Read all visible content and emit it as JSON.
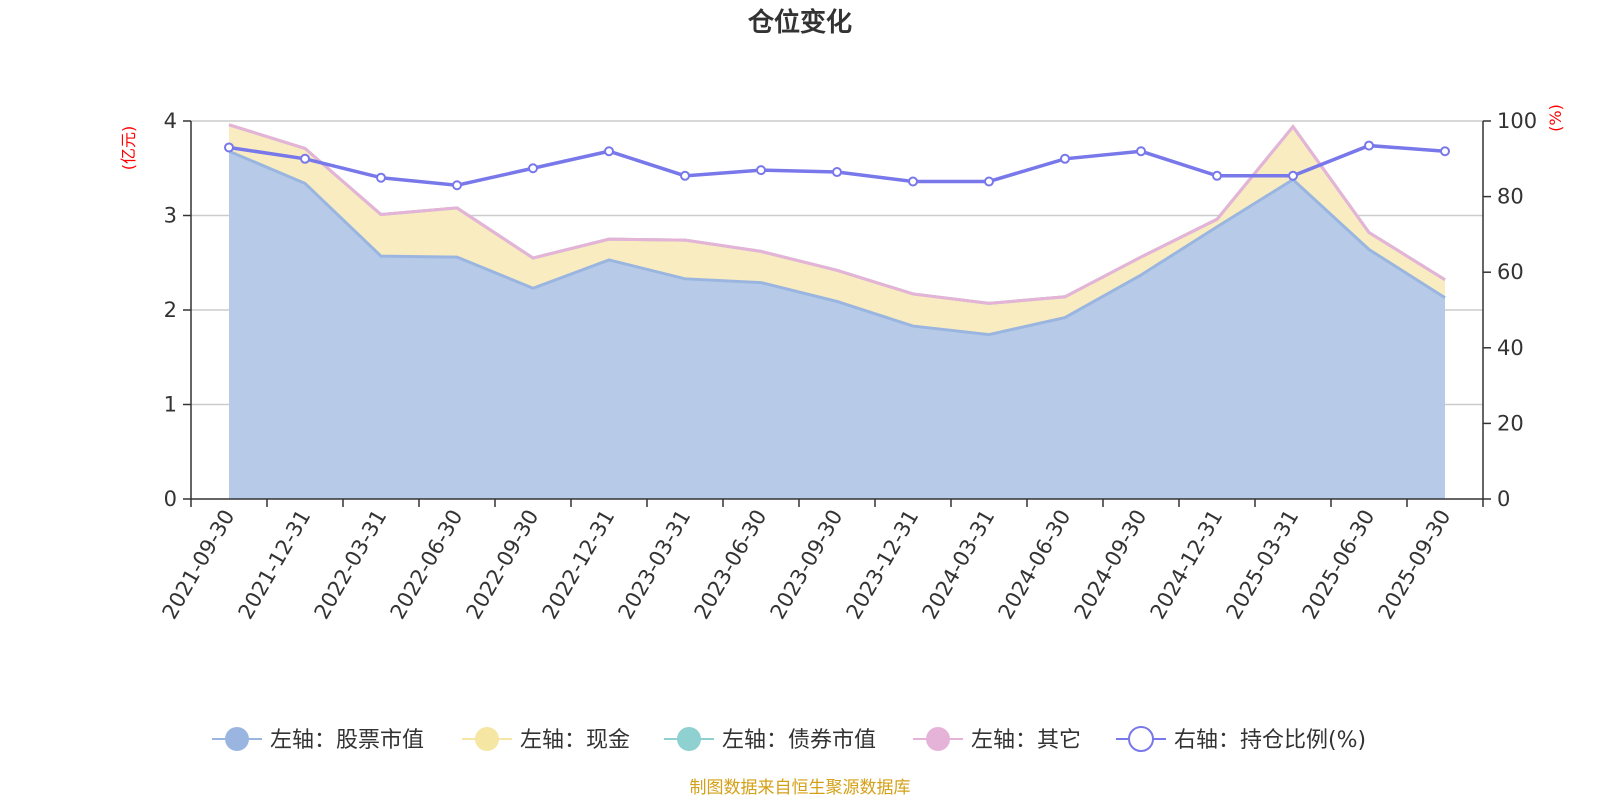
{
  "title": "仓位变化",
  "source_note": "制图数据来自恒生聚源数据库",
  "chart_data": {
    "type": "area",
    "categories": [
      "2021-09-30",
      "2021-12-31",
      "2022-03-31",
      "2022-06-30",
      "2022-09-30",
      "2022-12-31",
      "2023-03-31",
      "2023-06-30",
      "2023-09-30",
      "2023-12-31",
      "2024-03-31",
      "2024-06-30",
      "2024-09-30",
      "2024-12-31",
      "2025-03-31",
      "2025-06-30",
      "2025-09-30"
    ],
    "y_left": {
      "label": "(亿元)",
      "range": [
        0,
        4
      ],
      "ticks": [
        0,
        1,
        2,
        3,
        4
      ]
    },
    "y_right": {
      "label": "(%)",
      "range": [
        0,
        100
      ],
      "ticks": [
        0,
        20,
        40,
        60,
        80,
        100
      ]
    },
    "grid": true,
    "legend_position": "bottom",
    "stacked": true,
    "series": [
      {
        "name": "左轴：股票市值",
        "axis": "left",
        "type": "area",
        "color": "#9ab6e0",
        "fill": "#b7cbe9",
        "values": [
          3.68,
          3.34,
          2.57,
          2.56,
          2.23,
          2.53,
          2.33,
          2.29,
          2.09,
          1.83,
          1.74,
          1.92,
          2.37,
          2.88,
          3.38,
          2.64,
          2.13
        ]
      },
      {
        "name": "左轴：现金",
        "axis": "left",
        "type": "area",
        "color": "#f5e6a3",
        "fill": "#f8ecc0",
        "values": [
          0.28,
          0.37,
          0.44,
          0.52,
          0.32,
          0.22,
          0.41,
          0.33,
          0.33,
          0.34,
          0.33,
          0.22,
          0.19,
          0.08,
          0.56,
          0.18,
          0.19
        ]
      },
      {
        "name": "左轴：债券市值",
        "axis": "left",
        "type": "area",
        "color": "#8fd0d0",
        "fill": "#8fd0d0",
        "values": [
          0,
          0,
          0,
          0,
          0,
          0,
          0,
          0,
          0,
          0,
          0,
          0,
          0,
          0,
          0,
          0,
          0
        ]
      },
      {
        "name": "左轴：其它",
        "axis": "left",
        "type": "area",
        "color": "#e6b3d8",
        "fill": "#e6b3d8",
        "values": [
          0,
          0,
          0,
          0,
          0,
          0,
          0,
          0,
          0,
          0,
          0,
          0,
          0,
          0,
          0,
          0,
          0
        ]
      },
      {
        "name": "右轴：持仓比例(%)",
        "axis": "right",
        "type": "line",
        "color": "#7878ea",
        "values": [
          93,
          90,
          85,
          83,
          87.5,
          92,
          85.5,
          87,
          86.5,
          84,
          84,
          90,
          92,
          85.5,
          85.5,
          93.5,
          92
        ]
      }
    ]
  }
}
